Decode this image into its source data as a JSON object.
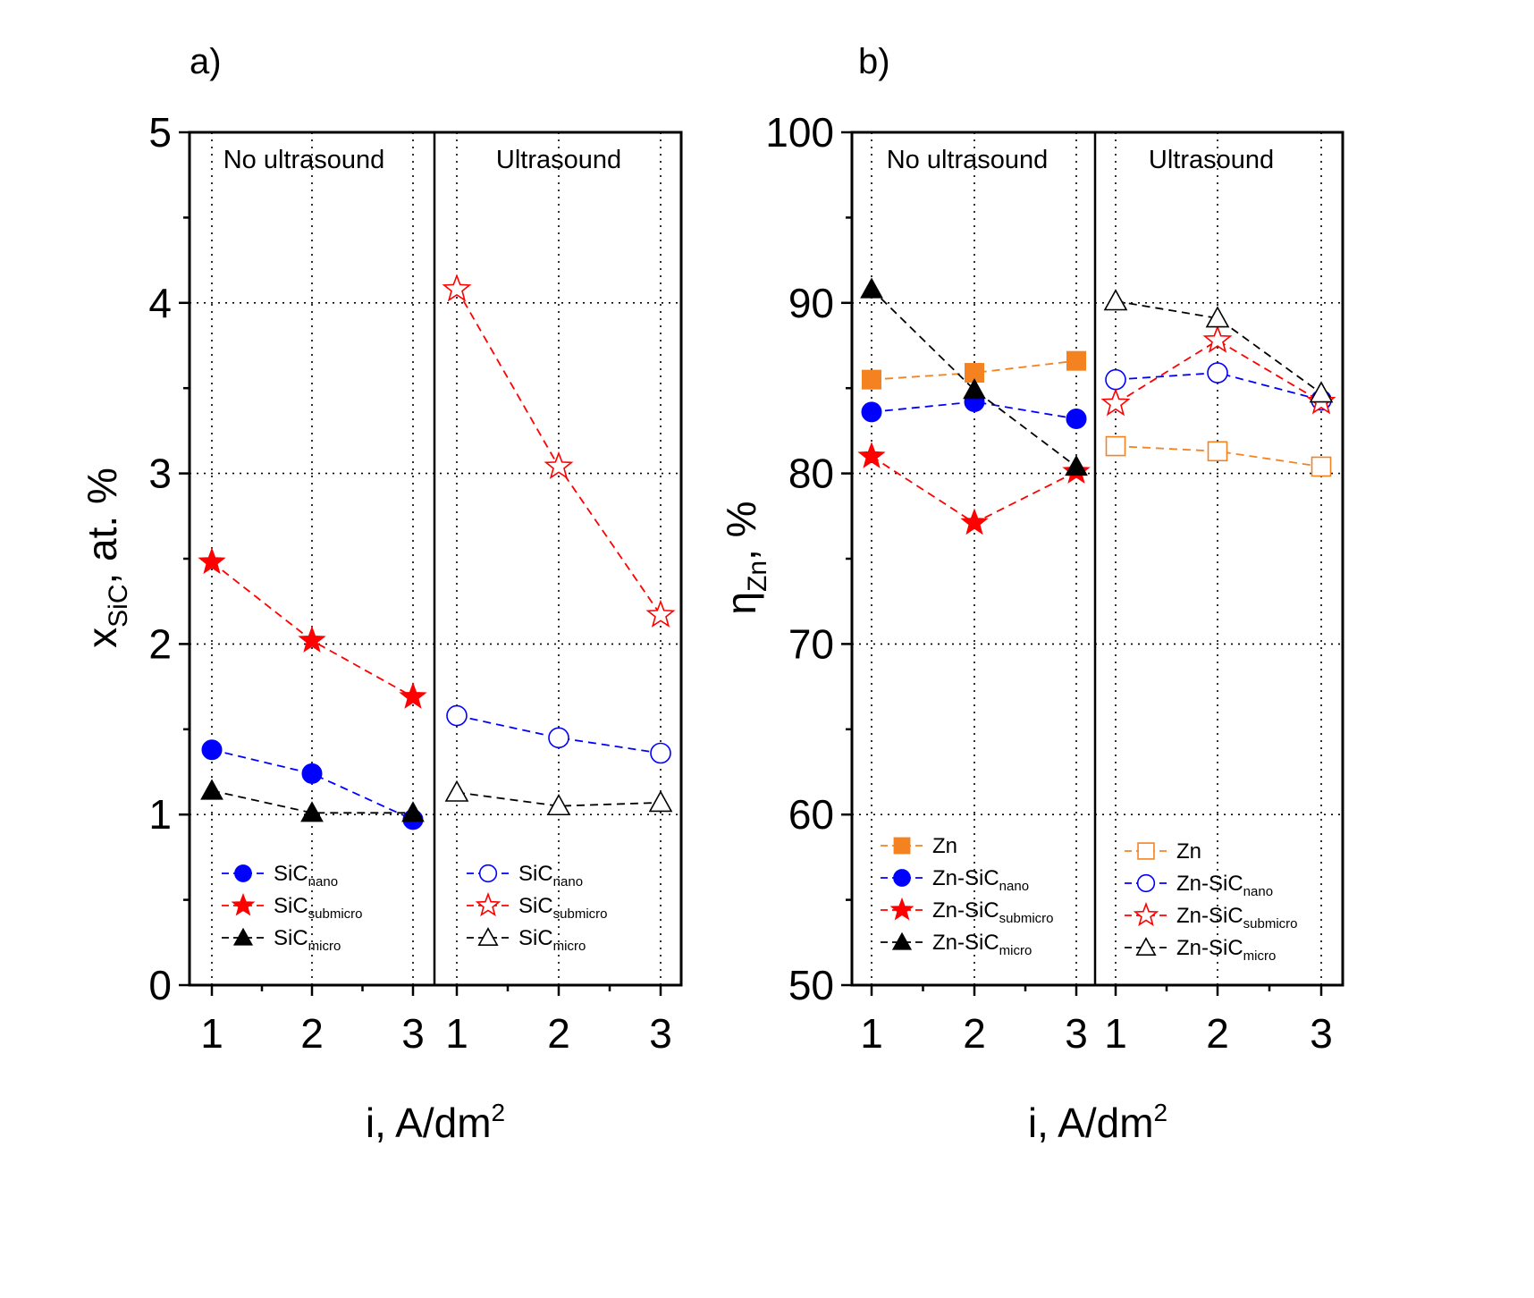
{
  "chart_data": [
    {
      "type": "line",
      "panel_label": "a)",
      "xlabel": "i, A/dm",
      "xlabel_sup": "2",
      "ylabel": "x",
      "ylabel_sub": "SiC",
      "ylabel_suffix": ", at. %",
      "ylim": [
        0,
        5
      ],
      "yticks": [
        0,
        1,
        2,
        3,
        4,
        5
      ],
      "grid": "dotted",
      "region_labels": [
        "No ultrasound",
        "Ultrasound"
      ],
      "x_ticks": [
        1,
        2,
        3
      ],
      "groups": [
        {
          "region": "No ultrasound",
          "legend_placement": "bottom-left",
          "series": [
            {
              "name": "SiC",
              "name_sub": "nano",
              "color": "#0000ff",
              "marker": "circle",
              "filled": true,
              "x": [
                1,
                2,
                3
              ],
              "y": [
                1.38,
                1.24,
                0.97
              ]
            },
            {
              "name": "SiC",
              "name_sub": "submicro",
              "color": "#ff0000",
              "marker": "star",
              "filled": true,
              "x": [
                1,
                2,
                3
              ],
              "y": [
                2.48,
                2.02,
                1.69
              ]
            },
            {
              "name": "SiC",
              "name_sub": "micro",
              "color": "#000000",
              "marker": "triangle",
              "filled": true,
              "x": [
                1,
                2,
                3
              ],
              "y": [
                1.14,
                1.01,
                1.01
              ]
            }
          ]
        },
        {
          "region": "Ultrasound",
          "legend_placement": "bottom-center",
          "series": [
            {
              "name": "SiC",
              "name_sub": "nano",
              "color": "#0000ff",
              "marker": "circle",
              "filled": false,
              "x": [
                1,
                2,
                3
              ],
              "y": [
                1.58,
                1.45,
                1.36
              ]
            },
            {
              "name": "SiC",
              "name_sub": "submicro",
              "color": "#ff0000",
              "marker": "star",
              "filled": false,
              "x": [
                1,
                2,
                3
              ],
              "y": [
                4.08,
                3.04,
                2.17
              ]
            },
            {
              "name": "SiC",
              "name_sub": "micro",
              "color": "#000000",
              "marker": "triangle",
              "filled": false,
              "x": [
                1,
                2,
                3
              ],
              "y": [
                1.13,
                1.05,
                1.07
              ]
            }
          ]
        }
      ]
    },
    {
      "type": "line",
      "panel_label": "b)",
      "xlabel": "i, A/dm",
      "xlabel_sup": "2",
      "ylabel": "η",
      "ylabel_sub": "Zn",
      "ylabel_suffix": ", %",
      "ylim": [
        50,
        100
      ],
      "yticks": [
        50,
        60,
        70,
        80,
        90,
        100
      ],
      "grid": "dotted",
      "region_labels": [
        "No ultrasound",
        "Ultrasound"
      ],
      "x_ticks": [
        1,
        2,
        3
      ],
      "groups": [
        {
          "region": "No ultrasound",
          "legend_placement": "bottom-left",
          "series": [
            {
              "name": "Zn",
              "name_sub": "",
              "color": "#f58220",
              "marker": "square",
              "filled": true,
              "x": [
                1,
                2,
                3
              ],
              "y": [
                85.5,
                85.9,
                86.6
              ]
            },
            {
              "name": "Zn-SiC",
              "name_sub": "nano",
              "color": "#0000ff",
              "marker": "circle",
              "filled": true,
              "x": [
                1,
                2,
                3
              ],
              "y": [
                83.6,
                84.2,
                83.2
              ]
            },
            {
              "name": "Zn-SiC",
              "name_sub": "submicro",
              "color": "#ff0000",
              "marker": "star",
              "filled": true,
              "x": [
                1,
                2,
                3
              ],
              "y": [
                81.0,
                77.1,
                80.1
              ]
            },
            {
              "name": "Zn-SiC",
              "name_sub": "micro",
              "color": "#000000",
              "marker": "triangle",
              "filled": true,
              "x": [
                1,
                2,
                3
              ],
              "y": [
                90.8,
                84.9,
                80.4
              ]
            }
          ]
        },
        {
          "region": "Ultrasound",
          "legend_placement": "bottom-center",
          "series": [
            {
              "name": "Zn",
              "name_sub": "",
              "color": "#f58220",
              "marker": "square",
              "filled": false,
              "x": [
                1,
                2,
                3
              ],
              "y": [
                81.6,
                81.3,
                80.4
              ]
            },
            {
              "name": "Zn-SiC",
              "name_sub": "nano",
              "color": "#0000ff",
              "marker": "circle",
              "filled": false,
              "x": [
                1,
                2,
                3
              ],
              "y": [
                85.5,
                85.9,
                84.3
              ]
            },
            {
              "name": "Zn-SiC",
              "name_sub": "submicro",
              "color": "#ff0000",
              "marker": "star",
              "filled": false,
              "x": [
                1,
                2,
                3
              ],
              "y": [
                84.1,
                87.8,
                84.2
              ]
            },
            {
              "name": "Zn-SiC",
              "name_sub": "micro",
              "color": "#000000",
              "marker": "triangle",
              "filled": false,
              "x": [
                1,
                2,
                3
              ],
              "y": [
                90.1,
                89.1,
                84.7
              ]
            }
          ]
        }
      ]
    }
  ]
}
